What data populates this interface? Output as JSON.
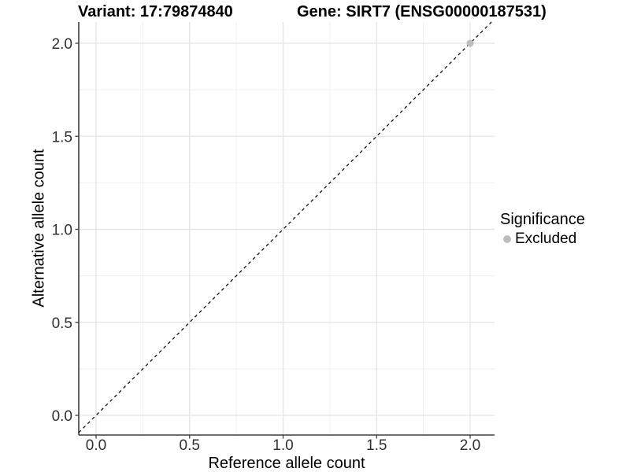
{
  "chart_data": {
    "type": "scatter",
    "title_left": "Variant: 17:79874840",
    "title_right": "Gene: SIRT7 (ENSG00000187531)",
    "xlabel": "Reference allele count",
    "ylabel": "Alternative allele count",
    "x_ticks": [
      0.0,
      0.5,
      1.0,
      1.5,
      2.0
    ],
    "y_ticks": [
      0.0,
      0.5,
      1.0,
      1.5,
      2.0
    ],
    "x_tick_labels": [
      "0.0",
      "0.5",
      "1.0",
      "1.5",
      "2.0"
    ],
    "y_tick_labels": [
      "0.0",
      "0.5",
      "1.0",
      "1.5",
      "2.0"
    ],
    "xlim": [
      -0.09,
      2.13
    ],
    "ylim": [
      -0.11,
      2.11
    ],
    "grid": {
      "major": true,
      "minor": true
    },
    "identity_line": {
      "style": "dashed",
      "slope": 1,
      "intercept": 0,
      "color": "#111111"
    },
    "series": [
      {
        "name": "Excluded",
        "color": "#bdbdbd",
        "points": [
          {
            "x": 2.0,
            "y": 2.0
          }
        ]
      }
    ],
    "legend": {
      "title": "Significance",
      "position": "right",
      "items": [
        {
          "label": "Excluded",
          "color": "#bdbdbd"
        }
      ]
    }
  },
  "colors": {
    "background": "#ffffff",
    "grid_major": "#e4e4e4",
    "grid_minor": "#efefef",
    "axis_line": "#3f3f3f",
    "tick_label": "#303030",
    "title_text": "#000000",
    "point": "#bdbdbd"
  }
}
